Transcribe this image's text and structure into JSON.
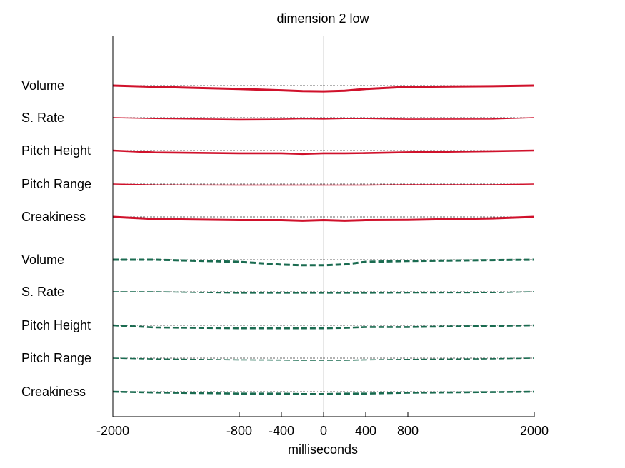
{
  "chart_data": {
    "type": "line",
    "title": "dimension  2 low",
    "xlabel": "milliseconds",
    "ylabel": "",
    "xlim": [
      -2000,
      2000
    ],
    "x_ticks": [
      -2000,
      -800,
      -400,
      0,
      400,
      800,
      2000
    ],
    "x_tick_labels": [
      "-2000",
      "-800",
      "-400",
      "0",
      "400",
      "800",
      "2000"
    ],
    "grid": false,
    "center_line_x": 0,
    "x": [
      -2000,
      -1600,
      -800,
      -400,
      -200,
      0,
      200,
      400,
      800,
      1600,
      2000
    ],
    "groups": [
      {
        "color": "#d0112b",
        "dash": "solid",
        "series": [
          {
            "name": "Volume",
            "values": [
              0,
              -0.6,
              -1.6,
              -2.2,
              -2.6,
              -2.7,
              -2.4,
              -1.6,
              -0.6,
              -0.3,
              0
            ]
          },
          {
            "name": "S. Rate",
            "values": [
              0,
              -0.4,
              -0.8,
              -0.7,
              -0.5,
              -0.6,
              -0.4,
              -0.4,
              -0.7,
              -0.6,
              0
            ]
          },
          {
            "name": "Pitch Height",
            "values": [
              0,
              -0.9,
              -1.3,
              -1.3,
              -1.6,
              -1.3,
              -1.3,
              -1.2,
              -0.8,
              -0.3,
              0
            ]
          },
          {
            "name": "Pitch Range",
            "values": [
              0,
              -0.4,
              -0.5,
              -0.5,
              -0.5,
              -0.5,
              -0.5,
              -0.5,
              -0.3,
              -0.3,
              0
            ]
          },
          {
            "name": "Creakiness",
            "values": [
              0,
              -1.0,
              -1.5,
              -1.5,
              -1.8,
              -1.5,
              -1.8,
              -1.5,
              -1.4,
              -0.7,
              0
            ]
          }
        ]
      },
      {
        "color": "#1a6b50",
        "dash": "dashed",
        "series": [
          {
            "name": "Volume",
            "values": [
              0,
              0,
              -1.0,
              -2.3,
              -2.6,
              -2.6,
              -2.2,
              -1.0,
              -0.6,
              -0.2,
              0
            ]
          },
          {
            "name": "S. Rate",
            "values": [
              0,
              0,
              -0.6,
              -0.6,
              -0.6,
              -0.6,
              -0.6,
              -0.6,
              -0.5,
              -0.4,
              0
            ]
          },
          {
            "name": "Pitch Height",
            "values": [
              0,
              -1.0,
              -1.4,
              -1.4,
              -1.4,
              -1.4,
              -1.2,
              -0.8,
              -0.8,
              -0.3,
              0
            ]
          },
          {
            "name": "Pitch Range",
            "values": [
              0,
              -0.4,
              -0.8,
              -0.9,
              -1.0,
              -1.0,
              -1.0,
              -0.8,
              -0.6,
              -0.3,
              0
            ]
          },
          {
            "name": "Creakiness",
            "values": [
              0,
              -0.4,
              -0.9,
              -0.9,
              -1.1,
              -1.1,
              -0.9,
              -0.9,
              -0.5,
              -0.2,
              0
            ]
          }
        ]
      }
    ]
  }
}
